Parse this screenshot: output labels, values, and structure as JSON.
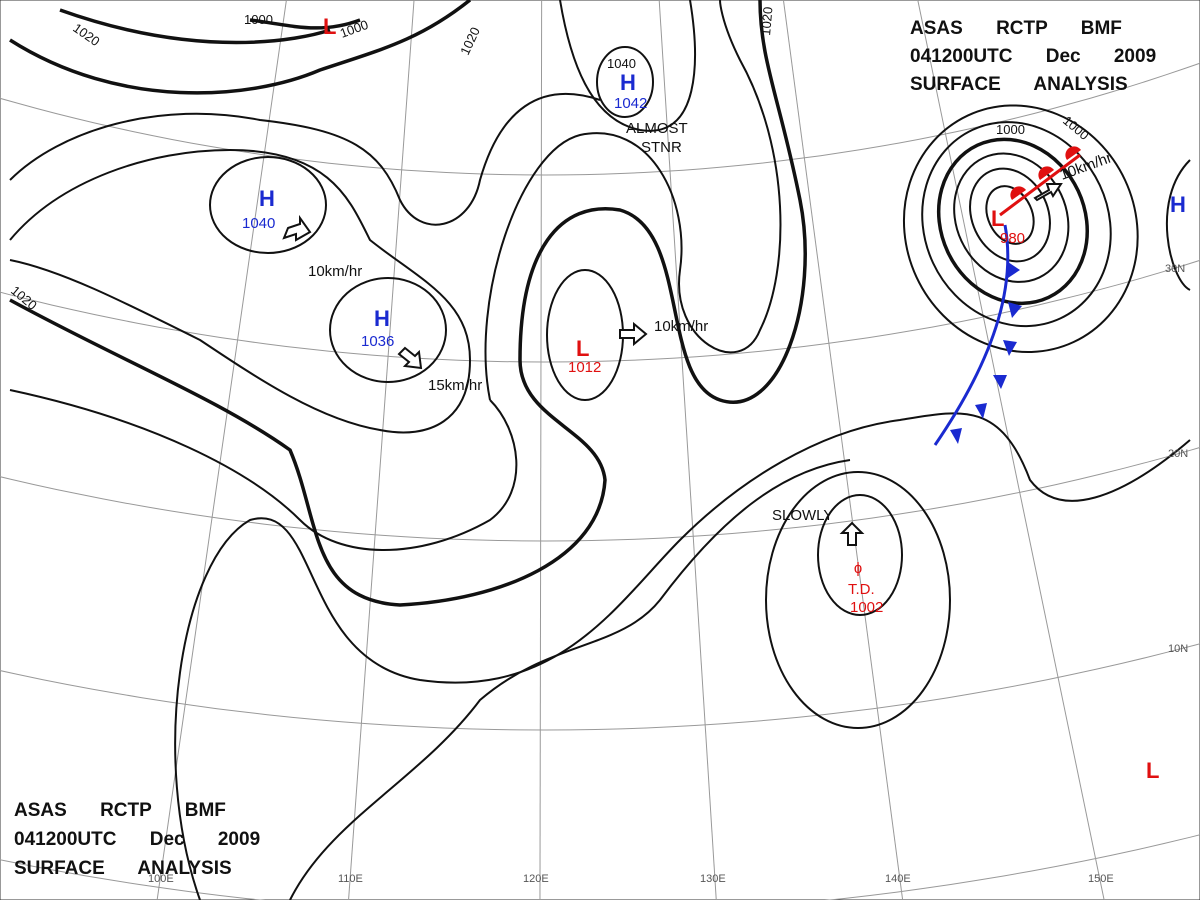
{
  "header_top": {
    "line1": "ASAS RCTP BMF",
    "line2": "041200UTC Dec 2009",
    "line3": "SURFACE ANALYSIS"
  },
  "header_bottom": {
    "line1": "ASAS RCTP BMF",
    "line2": "041200UTC Dec 2009",
    "line3": "SURFACE ANALYSIS"
  },
  "systems": [
    {
      "symbol": "L"
    },
    {
      "symbol": "H",
      "pressure": "1040"
    },
    {
      "symbol": "H",
      "pressure": "1036"
    },
    {
      "symbol": "H",
      "pressure": "1042"
    },
    {
      "symbol": "L",
      "pressure": "1012"
    },
    {
      "symbol": "L",
      "pressure": "980"
    },
    {
      "symbol": "H"
    },
    {
      "symbol": "L"
    }
  ],
  "tropical_depression": {
    "label": "T.D.",
    "pressure": "1002"
  },
  "isobar_labels": [
    "1000",
    "1000",
    "1020",
    "1020",
    "1020",
    "1020",
    "1000",
    "1000",
    "1040"
  ],
  "motion_labels": [
    "10km/hr",
    "15km/hr",
    "10km/hr",
    "10km/hr",
    "SLOWLY",
    "ALMOST",
    "STNR"
  ],
  "latitude_labels": [
    "30N",
    "20N",
    "10N"
  ],
  "longitude_labels": [
    "100E",
    "110E",
    "120E",
    "130E",
    "140E",
    "150E"
  ]
}
